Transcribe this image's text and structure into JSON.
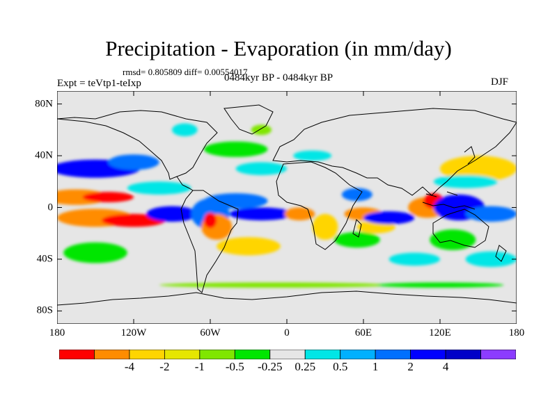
{
  "title": "Precipitation - Evaporation (in mm/day)",
  "stats": "rmsd= 0.805809 diff= 0.00554017",
  "experiment": "Expt = teVtp1-teIxp",
  "period": "0484kyr BP - 0484kyr BP",
  "season": "DJF",
  "lat_ticks": [
    {
      "label": "80N",
      "value": 80
    },
    {
      "label": "40N",
      "value": 40
    },
    {
      "label": "0",
      "value": 0
    },
    {
      "label": "40S",
      "value": -40
    },
    {
      "label": "80S",
      "value": -80
    }
  ],
  "lon_ticks": [
    {
      "label": "180",
      "value": -180
    },
    {
      "label": "120W",
      "value": -120
    },
    {
      "label": "60W",
      "value": -60
    },
    {
      "label": "0",
      "value": 0
    },
    {
      "label": "60E",
      "value": 60
    },
    {
      "label": "120E",
      "value": 120
    },
    {
      "label": "180",
      "value": 180
    }
  ],
  "colorbar": {
    "colors": [
      "#ff0000",
      "#ff8c00",
      "#ffd500",
      "#e6e600",
      "#80e600",
      "#00e600",
      "#e6e6e6",
      "#00e6e6",
      "#00b0ff",
      "#0070ff",
      "#0000ff",
      "#0000c8",
      "#8c3cff"
    ],
    "labels": [
      "-4",
      "-2",
      "-1",
      "-0.5",
      "-0.25",
      "0.25",
      "0.5",
      "1",
      "2",
      "4"
    ]
  },
  "legend_colors": {
    "red": "#ff0000",
    "orange": "#ff8c00",
    "yellow": "#ffd500",
    "lime": "#80e600",
    "green": "#00e600",
    "neutral": "#e6e6e6",
    "cyan": "#00e6e6",
    "sky": "#00b0ff",
    "blue": "#0070ff",
    "dblue": "#0000ff",
    "navy": "#0000c8"
  },
  "field_anomalies": [
    {
      "lon": -150,
      "lat": 30,
      "rlon": 35,
      "rlat": 7,
      "level": "dblue"
    },
    {
      "lon": -120,
      "lat": 35,
      "rlon": 20,
      "rlat": 6,
      "level": "blue"
    },
    {
      "lon": -165,
      "lat": 8,
      "rlon": 25,
      "rlat": 6,
      "level": "orange"
    },
    {
      "lon": -140,
      "lat": 8,
      "rlon": 20,
      "rlat": 4,
      "level": "red"
    },
    {
      "lon": -150,
      "lat": -8,
      "rlon": 30,
      "rlat": 7,
      "level": "orange"
    },
    {
      "lon": -120,
      "lat": -10,
      "rlon": 25,
      "rlat": 5,
      "level": "red"
    },
    {
      "lon": -150,
      "lat": -35,
      "rlon": 25,
      "rlat": 8,
      "level": "green"
    },
    {
      "lon": -100,
      "lat": 15,
      "rlon": 25,
      "rlat": 5,
      "level": "cyan"
    },
    {
      "lon": -90,
      "lat": -5,
      "rlon": 20,
      "rlat": 6,
      "level": "dblue"
    },
    {
      "lon": -60,
      "lat": -5,
      "rlon": 15,
      "rlat": 12,
      "level": "blue"
    },
    {
      "lon": -55,
      "lat": -15,
      "rlon": 12,
      "rlat": 10,
      "level": "orange"
    },
    {
      "lon": -60,
      "lat": -10,
      "rlon": 5,
      "rlat": 6,
      "level": "red"
    },
    {
      "lon": -40,
      "lat": 5,
      "rlon": 25,
      "rlat": 6,
      "level": "blue"
    },
    {
      "lon": -20,
      "lat": -5,
      "rlon": 25,
      "rlat": 5,
      "level": "dblue"
    },
    {
      "lon": -30,
      "lat": -30,
      "rlon": 25,
      "rlat": 7,
      "level": "yellow"
    },
    {
      "lon": -40,
      "lat": 45,
      "rlon": 25,
      "rlat": 6,
      "level": "green"
    },
    {
      "lon": -20,
      "lat": 30,
      "rlon": 20,
      "rlat": 5,
      "level": "cyan"
    },
    {
      "lon": 10,
      "lat": -5,
      "rlon": 12,
      "rlat": 5,
      "level": "orange"
    },
    {
      "lon": 30,
      "lat": -15,
      "rlon": 10,
      "rlat": 10,
      "level": "yellow"
    },
    {
      "lon": 55,
      "lat": 10,
      "rlon": 12,
      "rlat": 5,
      "level": "blue"
    },
    {
      "lon": 60,
      "lat": -5,
      "rlon": 15,
      "rlat": 5,
      "level": "orange"
    },
    {
      "lon": 70,
      "lat": -15,
      "rlon": 15,
      "rlat": 5,
      "level": "yellow"
    },
    {
      "lon": 55,
      "lat": -25,
      "rlon": 18,
      "rlat": 6,
      "level": "green"
    },
    {
      "lon": 80,
      "lat": -8,
      "rlon": 20,
      "rlat": 5,
      "level": "dblue"
    },
    {
      "lon": 110,
      "lat": 0,
      "rlon": 15,
      "rlat": 8,
      "level": "orange"
    },
    {
      "lon": 115,
      "lat": 5,
      "rlon": 8,
      "rlat": 6,
      "level": "red"
    },
    {
      "lon": 135,
      "lat": 0,
      "rlon": 20,
      "rlat": 10,
      "level": "dblue"
    },
    {
      "lon": 160,
      "lat": -5,
      "rlon": 20,
      "rlat": 6,
      "level": "blue"
    },
    {
      "lon": 150,
      "lat": 30,
      "rlon": 30,
      "rlat": 10,
      "level": "yellow"
    },
    {
      "lon": 140,
      "lat": 20,
      "rlon": 25,
      "rlat": 5,
      "level": "cyan"
    },
    {
      "lon": 130,
      "lat": -25,
      "rlon": 18,
      "rlat": 8,
      "level": "green"
    },
    {
      "lon": 160,
      "lat": -40,
      "rlon": 20,
      "rlat": 6,
      "level": "cyan"
    },
    {
      "lon": 100,
      "lat": -40,
      "rlon": 20,
      "rlat": 5,
      "level": "cyan"
    },
    {
      "lon": -10,
      "lat": -60,
      "rlon": 90,
      "rlat": 2,
      "level": "lime"
    },
    {
      "lon": 120,
      "lat": -60,
      "rlon": 50,
      "rlat": 2,
      "level": "green"
    },
    {
      "lon": -80,
      "lat": 60,
      "rlon": 10,
      "rlat": 5,
      "level": "cyan"
    },
    {
      "lon": 20,
      "lat": 40,
      "rlon": 15,
      "rlat": 4,
      "level": "cyan"
    },
    {
      "lon": -20,
      "lat": 60,
      "rlon": 8,
      "rlat": 4,
      "level": "lime"
    }
  ]
}
